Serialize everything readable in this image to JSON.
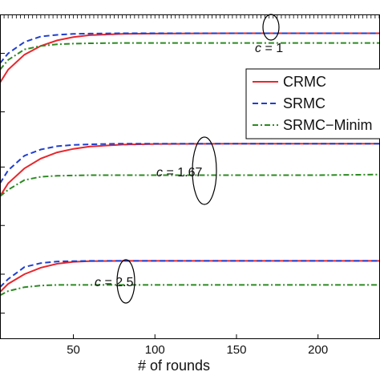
{
  "chart_data": {
    "type": "line",
    "xlabel": "# of rounds",
    "ylabel": "",
    "title": "",
    "xlim": [
      5,
      238
    ],
    "ylim": [
      0,
      1
    ],
    "x_ticks": [
      50,
      100,
      150,
      200
    ],
    "x_tick_labels": [
      "50",
      "100",
      "150",
      "200"
    ],
    "grid": false,
    "legend_position": "right",
    "legend": [
      "CRMC",
      "SRMC",
      "SRMC−Minim"
    ],
    "series_styles": [
      {
        "name": "CRMC",
        "color": "#e8262c",
        "dash": "solid"
      },
      {
        "name": "SRMC",
        "color": "#1f3fcf",
        "dash": "dashed"
      },
      {
        "name": "SRMC−Minim",
        "color": "#2c8a22",
        "dash": "dashdot"
      }
    ],
    "groups": [
      {
        "label_prefix": "c = ",
        "label_value": "1",
        "series": [
          {
            "name": "CRMC",
            "x": [
              5,
              10,
              20,
              30,
              40,
              50,
              60,
              80,
              100,
              150,
              200,
              238
            ],
            "y": [
              0.79,
              0.83,
              0.876,
              0.903,
              0.92,
              0.93,
              0.936,
              0.94,
              0.941,
              0.942,
              0.942,
              0.942
            ]
          },
          {
            "name": "SRMC",
            "x": [
              5,
              10,
              20,
              30,
              40,
              50,
              60,
              80,
              100,
              150,
              200,
              238
            ],
            "y": [
              0.85,
              0.88,
              0.915,
              0.932,
              0.937,
              0.94,
              0.941,
              0.942,
              0.942,
              0.942,
              0.942,
              0.942
            ]
          },
          {
            "name": "SRMC−Minim",
            "x": [
              5,
              10,
              20,
              30,
              40,
              50,
              60,
              80,
              100,
              150,
              200,
              238
            ],
            "y": [
              0.83,
              0.86,
              0.892,
              0.903,
              0.908,
              0.91,
              0.911,
              0.912,
              0.912,
              0.912,
              0.912,
              0.912
            ]
          }
        ]
      },
      {
        "label_prefix": "c = ",
        "label_value": "1.67",
        "series": [
          {
            "name": "CRMC",
            "x": [
              5,
              10,
              20,
              30,
              40,
              50,
              60,
              80,
              100,
              150,
              200,
              238
            ],
            "y": [
              0.44,
              0.48,
              0.526,
              0.556,
              0.575,
              0.586,
              0.593,
              0.599,
              0.601,
              0.602,
              0.602,
              0.602
            ]
          },
          {
            "name": "SRMC",
            "x": [
              5,
              10,
              20,
              30,
              40,
              50,
              60,
              80,
              100,
              150,
              200,
              238
            ],
            "y": [
              0.48,
              0.52,
              0.565,
              0.584,
              0.594,
              0.598,
              0.6,
              0.602,
              0.602,
              0.602,
              0.602,
              0.602
            ]
          },
          {
            "name": "SRMC−Minim",
            "x": [
              5,
              10,
              20,
              30,
              40,
              50,
              60,
              80,
              100,
              150,
              200,
              238
            ],
            "y": [
              0.44,
              0.46,
              0.49,
              0.5,
              0.503,
              0.504,
              0.505,
              0.505,
              0.505,
              0.505,
              0.505,
              0.507
            ]
          }
        ]
      },
      {
        "label_prefix": "c = ",
        "label_value": "2.5",
        "series": [
          {
            "name": "CRMC",
            "x": [
              5,
              10,
              20,
              30,
              40,
              50,
              60,
              80,
              100,
              150,
              200,
              238
            ],
            "y": [
              0.145,
              0.17,
              0.2,
              0.22,
              0.232,
              0.238,
              0.24,
              0.241,
              0.241,
              0.241,
              0.241,
              0.241
            ]
          },
          {
            "name": "SRMC",
            "x": [
              5,
              10,
              20,
              30,
              40,
              50,
              60,
              80,
              100,
              150,
              200,
              238
            ],
            "y": [
              0.16,
              0.185,
              0.222,
              0.234,
              0.239,
              0.24,
              0.241,
              0.241,
              0.241,
              0.241,
              0.241,
              0.241
            ]
          },
          {
            "name": "SRMC−Minim",
            "x": [
              5,
              10,
              20,
              30,
              40,
              50,
              60,
              80,
              100,
              150,
              200,
              238
            ],
            "y": [
              0.135,
              0.148,
              0.16,
              0.165,
              0.167,
              0.167,
              0.167,
              0.167,
              0.167,
              0.167,
              0.167,
              0.167
            ]
          }
        ]
      }
    ]
  }
}
